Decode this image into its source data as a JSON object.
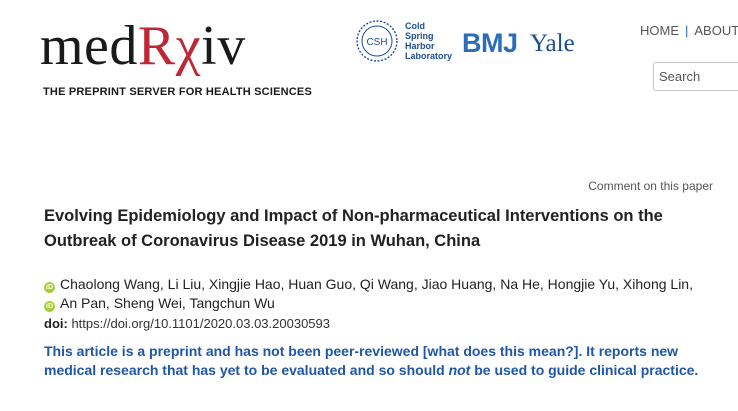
{
  "header": {
    "logo": {
      "part1": "med",
      "part2": "Rχ",
      "part3": "iv"
    },
    "tagline": "THE PREPRINT SERVER FOR HEALTH SCIENCES",
    "partners": {
      "csh_badge": "CSH",
      "csh_lines": [
        "Cold",
        "Spring",
        "Harbor",
        "Laboratory"
      ],
      "bmj": "BMJ",
      "yale": "Yale"
    },
    "nav": {
      "home": "HOME",
      "separator": "|",
      "about": "ABOUT"
    },
    "search": {
      "placeholder": "Search"
    }
  },
  "article": {
    "comment_link": "Comment on this paper",
    "title": "Evolving Epidemiology and Impact of Non-pharmaceutical Interventions on the Outbreak of Coronavirus Disease 2019 in Wuhan, China",
    "authors": {
      "orcid_mark": "iD",
      "group1": "Chaolong Wang, Li Liu, Xingjie Hao, Huan Guo, Qi Wang, Jiao Huang, Na He, Hongjie Yu, Xihong Lin,",
      "group2": "An Pan, Sheng Wei, Tangchun Wu"
    },
    "doi": {
      "label": "doi:",
      "url": "https://doi.org/10.1101/2020.03.03.20030593"
    },
    "notice": {
      "part1": "This article is a preprint and has not been peer-reviewed ",
      "link": "[what does this mean?]",
      "part2": ". It reports new medical research that has yet to be evaluated and so should ",
      "emph": "not",
      "part3": " be used to guide clinical practice."
    }
  },
  "colors": {
    "logo_accent": "#bd2736",
    "notice_blue": "#1f56a6",
    "orcid_green": "#a6ce39",
    "partner_blue": "#2a6ebb"
  },
  "icons": {
    "orcid": "orcid-icon",
    "csh": "csh-logo-icon"
  }
}
